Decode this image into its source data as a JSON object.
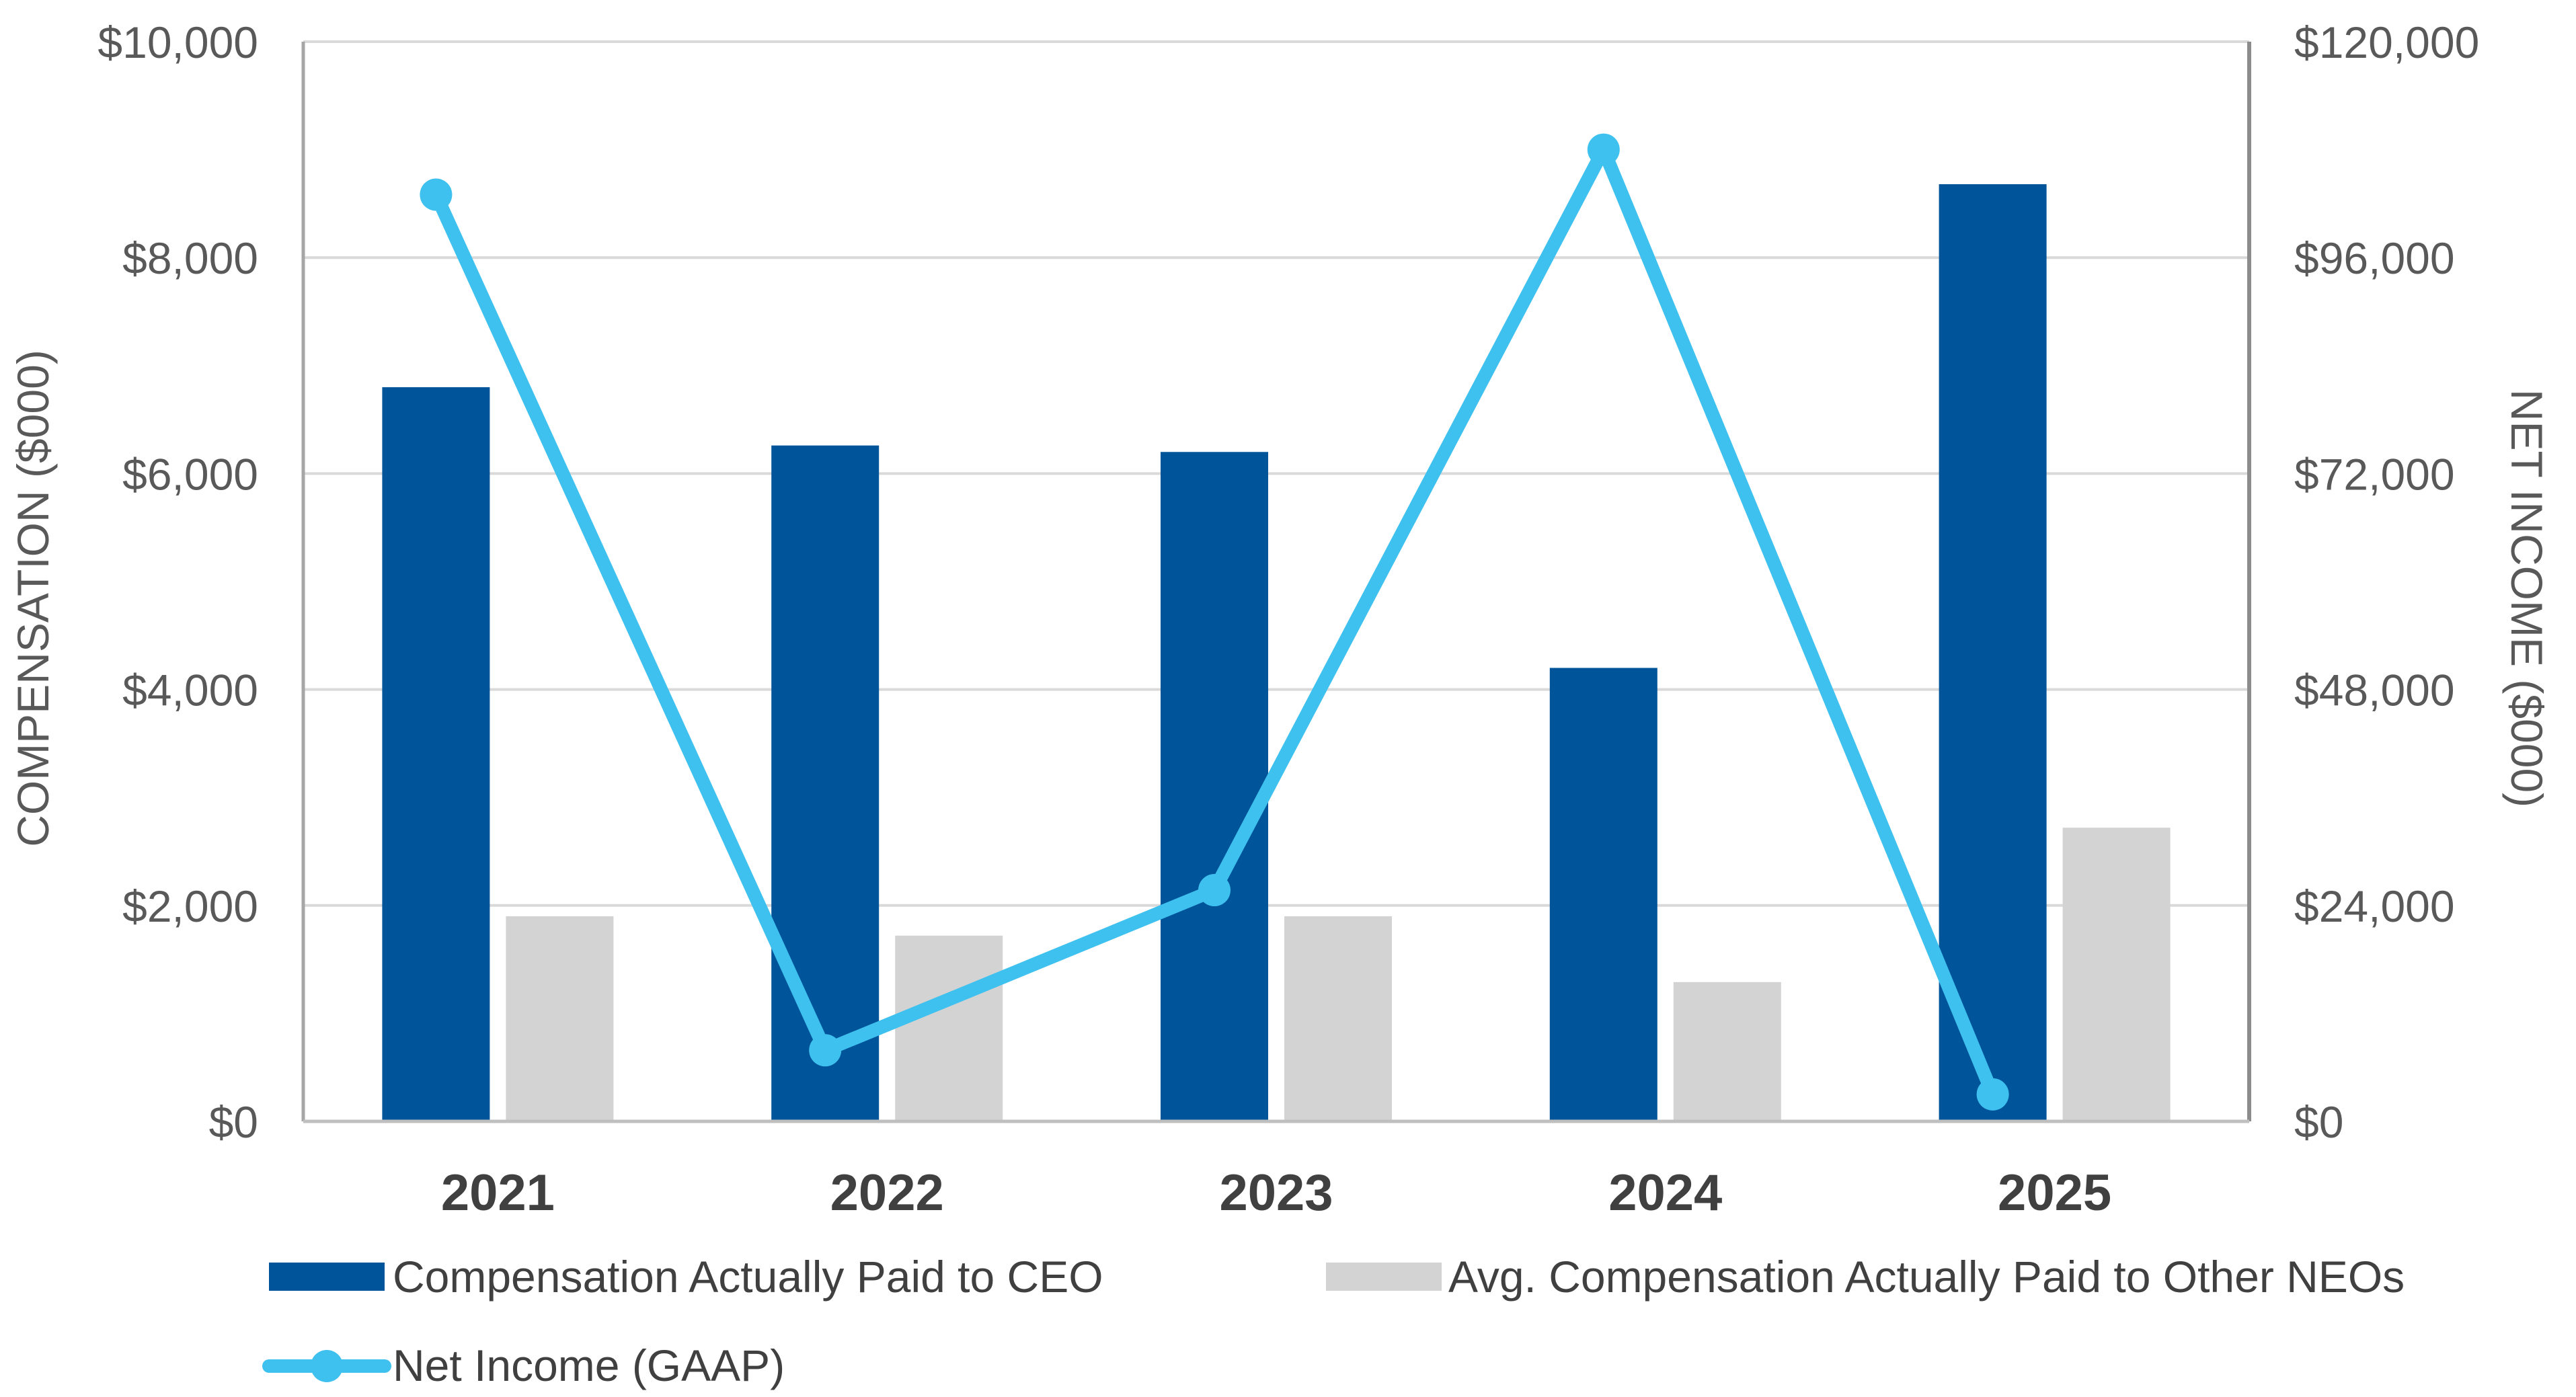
{
  "chart_data": {
    "type": "bar",
    "categories": [
      "2021",
      "2022",
      "2023",
      "2024",
      "2025"
    ],
    "series": [
      {
        "name": "Compensation Actually Paid to CEO",
        "type": "bar",
        "axis": "left",
        "color": "#00549A",
        "values": [
          6800,
          6260,
          6200,
          4200,
          8680
        ]
      },
      {
        "name": "Avg. Compensation Actually Paid to Other NEOs",
        "type": "bar",
        "axis": "left",
        "color": "#D3D3D3",
        "values": [
          1900,
          1720,
          1900,
          1290,
          2720
        ]
      },
      {
        "name": "Net Income (GAAP)",
        "type": "line",
        "axis": "right",
        "color": "#3EC1EE",
        "values": [
          103000,
          7900,
          25700,
          108000,
          3000
        ]
      }
    ],
    "ylabel": "COMPENSATION ($000)",
    "y2label": "NET INCOME ($000)",
    "ylim": [
      0,
      10000
    ],
    "y2lim": [
      0,
      120000
    ],
    "yticks": [
      0,
      2000,
      4000,
      6000,
      8000,
      10000
    ],
    "y2ticks": [
      0,
      24000,
      48000,
      72000,
      96000,
      120000
    ],
    "ytick_labels": [
      "$0",
      "$2,000",
      "$4,000",
      "$6,000",
      "$8,000",
      "$10,000"
    ],
    "y2tick_labels": [
      "$0",
      "$24,000",
      "$48,000",
      "$72,000",
      "$96,000",
      "$120,000"
    ],
    "grid": true,
    "legend_position": "bottom"
  }
}
